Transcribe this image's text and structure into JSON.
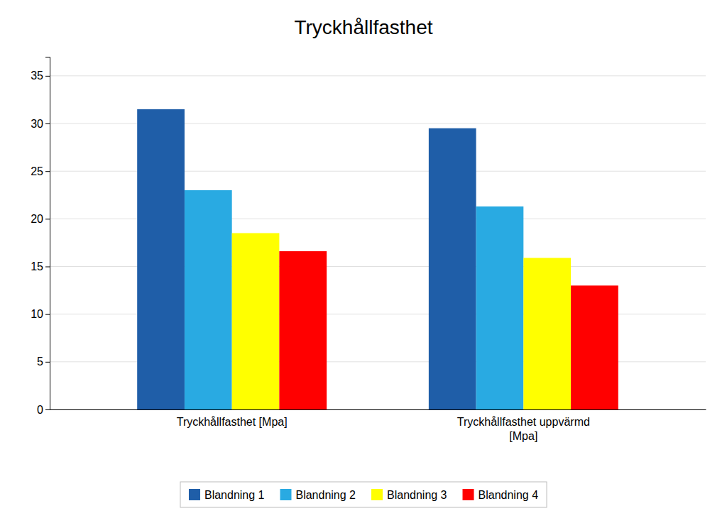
{
  "chart_data": {
    "type": "bar",
    "title": "Tryckhållfasthet",
    "categories": [
      "Tryckhållfasthet [Mpa]",
      "Tryckhållfasthet uppvärmd\n[Mpa]"
    ],
    "series": [
      {
        "name": "Blandning 1",
        "color": "#1F5EA8",
        "values": [
          31.5,
          29.5
        ]
      },
      {
        "name": "Blandning 2",
        "color": "#29AAE2",
        "values": [
          23.0,
          21.3
        ]
      },
      {
        "name": "Blandning 3",
        "color": "#FFFF00",
        "values": [
          18.5,
          15.9
        ]
      },
      {
        "name": "Blandning 4",
        "color": "#FF0000",
        "values": [
          16.6,
          13.0
        ]
      }
    ],
    "ylim": [
      0,
      37
    ],
    "yticks": [
      0,
      5,
      10,
      15,
      20,
      25,
      30,
      35
    ],
    "grid": true,
    "legend": "bottom"
  }
}
